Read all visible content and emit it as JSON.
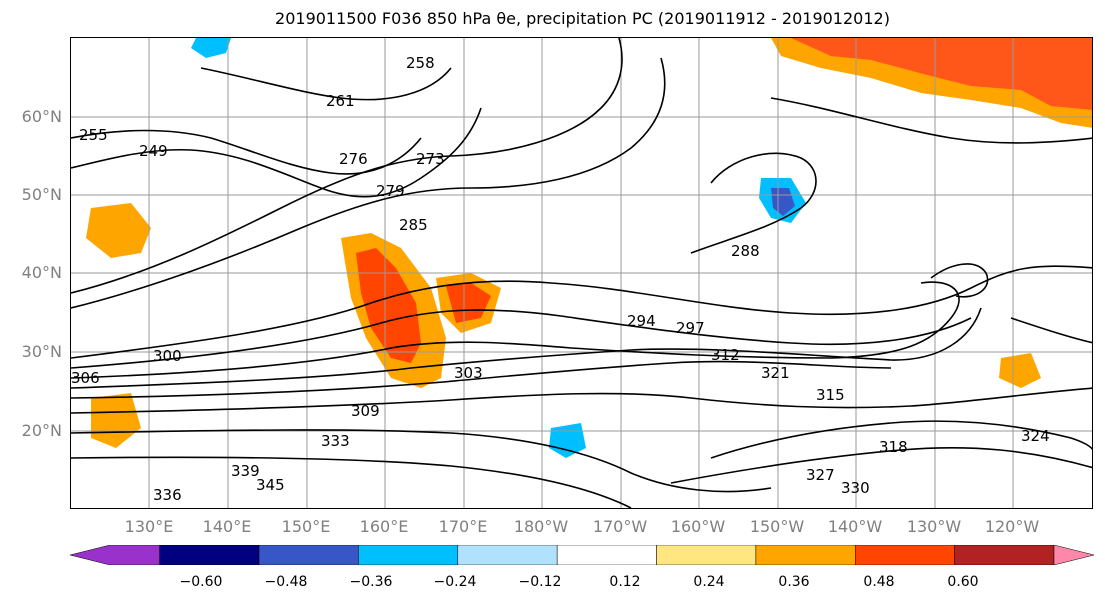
{
  "title": "2019011500 F036 850 hPa θe, precipitation PC (2019011912 - 2019012012)",
  "map": {
    "lat_labels": [
      "60°N",
      "50°N",
      "40°N",
      "30°N",
      "20°N"
    ],
    "lon_labels": [
      "130°E",
      "140°E",
      "150°E",
      "160°E",
      "170°E",
      "180°W",
      "170°W",
      "160°W",
      "150°W",
      "140°W",
      "130°W",
      "120°W"
    ],
    "contour_labels": [
      "258",
      "261",
      "255",
      "249",
      "276",
      "273",
      "279",
      "285",
      "288",
      "294",
      "297",
      "300",
      "303",
      "306",
      "309",
      "312",
      "315",
      "318",
      "321",
      "324",
      "327",
      "330",
      "333",
      "336",
      "339",
      "345"
    ]
  },
  "colorbar": {
    "ticks": [
      "−0.60",
      "−0.48",
      "−0.36",
      "−0.24",
      "−0.12",
      "0.12",
      "0.24",
      "0.36",
      "0.48",
      "0.60"
    ],
    "colors": [
      "#9932cc",
      "#000080",
      "#3757c8",
      "#00bfff",
      "#b0e2ff",
      "#ffffff",
      "#ffe680",
      "#ffa500",
      "#ff4500",
      "#b22222",
      "#ff88aa"
    ]
  }
}
